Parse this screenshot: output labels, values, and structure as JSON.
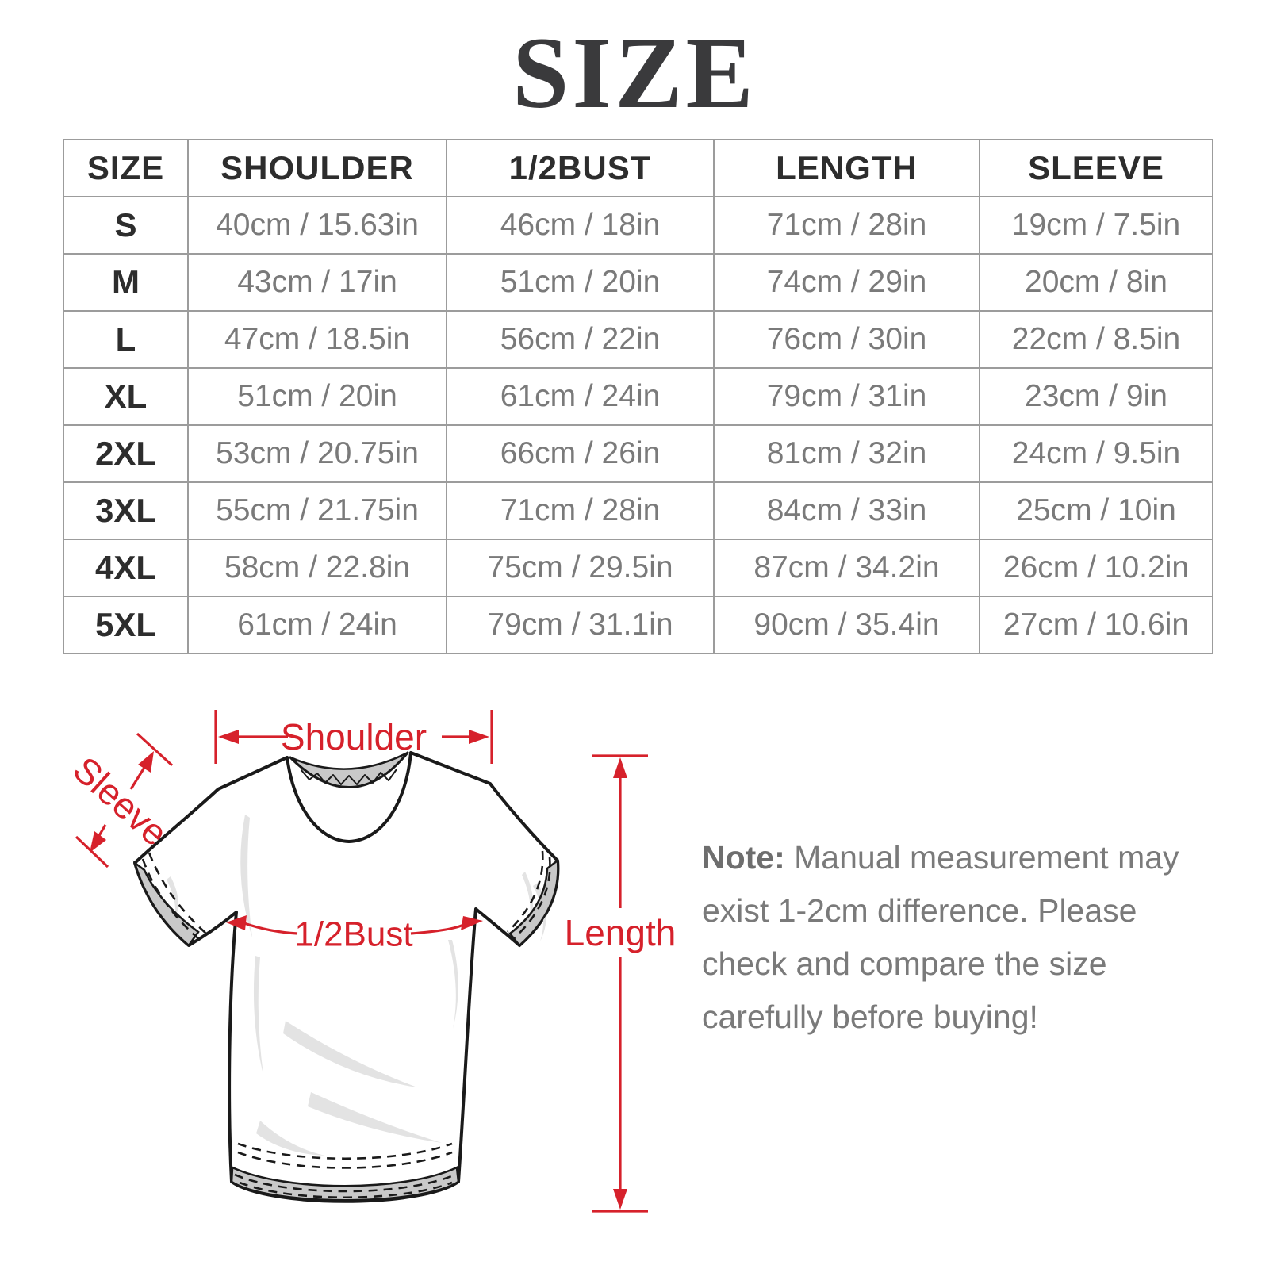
{
  "title": "SIZE",
  "colors": {
    "accent-red": "#d6212b",
    "ink": "#2d2d2d",
    "muted": "#7a7a7a",
    "border": "#9c9c9c",
    "title-ink": "#3a3a3c",
    "note-ink": "#6e6e6e"
  },
  "table": {
    "columns": [
      "SIZE",
      "SHOULDER",
      "1/2BUST",
      "LENGTH",
      "SLEEVE"
    ],
    "rows": [
      [
        "S",
        "40cm / 15.63in",
        "46cm / 18in",
        "71cm / 28in",
        "19cm / 7.5in"
      ],
      [
        "M",
        "43cm / 17in",
        "51cm / 20in",
        "74cm / 29in",
        "20cm / 8in"
      ],
      [
        "L",
        "47cm / 18.5in",
        "56cm / 22in",
        "76cm / 30in",
        "22cm / 8.5in"
      ],
      [
        "XL",
        "51cm / 20in",
        "61cm / 24in",
        "79cm / 31in",
        "23cm / 9in"
      ],
      [
        "2XL",
        "53cm / 20.75in",
        "66cm / 26in",
        "81cm / 32in",
        "24cm / 9.5in"
      ],
      [
        "3XL",
        "55cm / 21.75in",
        "71cm / 28in",
        "84cm / 33in",
        "25cm / 10in"
      ],
      [
        "4XL",
        "58cm / 22.8in",
        "75cm / 29.5in",
        "87cm / 34.2in",
        "26cm / 10.2in"
      ],
      [
        "5XL",
        "61cm / 24in",
        "79cm / 31.1in",
        "90cm / 35.4in",
        "27cm / 10.6in"
      ]
    ]
  },
  "diagram": {
    "shoulder_label": "Shoulder",
    "sleeve_label": "Sleeve",
    "bust_label": "1/2Bust",
    "length_label": "Length"
  },
  "note": {
    "label": "Note:",
    "text": " Manual measurement may exist 1-2cm difference. Please check and compare the size carefully before buying!"
  }
}
